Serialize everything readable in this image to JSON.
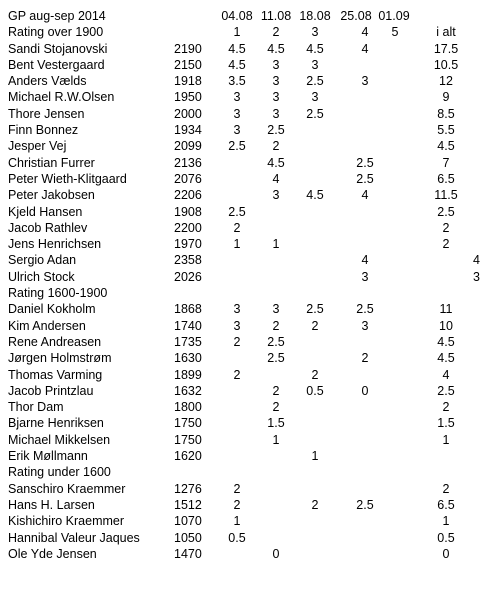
{
  "title": "GP aug-sep 2014",
  "dates": [
    "04.08",
    "11.08",
    "18.08",
    "25.08",
    "01.09"
  ],
  "round_numbers": [
    "1",
    "2",
    "3",
    "4",
    "5"
  ],
  "total_header": "i alt",
  "sections": [
    {
      "label": "Rating over 1900",
      "players": [
        {
          "name": "Sandi Stojanovski",
          "rating": "2190",
          "scores": [
            "4.5",
            "4.5",
            "4.5",
            "4",
            ""
          ],
          "total": "17.5",
          "extra": ""
        },
        {
          "name": "Bent Vestergaard",
          "rating": "2150",
          "scores": [
            "4.5",
            "3",
            "3",
            "",
            ""
          ],
          "total": "10.5",
          "extra": ""
        },
        {
          "name": "Anders Vælds",
          "rating": "1918",
          "scores": [
            "3.5",
            "3",
            "2.5",
            "3",
            ""
          ],
          "total": "12",
          "extra": ""
        },
        {
          "name": "Michael R.W.Olsen",
          "rating": "1950",
          "scores": [
            "3",
            "3",
            "3",
            "",
            ""
          ],
          "total": "9",
          "extra": ""
        },
        {
          "name": "Thore Jensen",
          "rating": "2000",
          "scores": [
            "3",
            "3",
            "2.5",
            "",
            ""
          ],
          "total": "8.5",
          "extra": ""
        },
        {
          "name": "Finn Bonnez",
          "rating": "1934",
          "scores": [
            "3",
            "2.5",
            "",
            "",
            ""
          ],
          "total": "5.5",
          "extra": ""
        },
        {
          "name": "Jesper Vej",
          "rating": "2099",
          "scores": [
            "2.5",
            "2",
            "",
            "",
            ""
          ],
          "total": "4.5",
          "extra": ""
        },
        {
          "name": "Christian Furrer",
          "rating": "2136",
          "scores": [
            "",
            "4.5",
            "",
            "2.5",
            ""
          ],
          "total": "7",
          "extra": ""
        },
        {
          "name": "Peter Wieth-Klitgaard",
          "rating": "2076",
          "scores": [
            "",
            "4",
            "",
            "2.5",
            ""
          ],
          "total": "6.5",
          "extra": ""
        },
        {
          "name": "Peter Jakobsen",
          "rating": "2206",
          "scores": [
            "",
            "3",
            "4.5",
            "4",
            ""
          ],
          "total": "11.5",
          "extra": ""
        },
        {
          "name": "Kjeld Hansen",
          "rating": "1908",
          "scores": [
            "2.5",
            "",
            "",
            "",
            ""
          ],
          "total": "2.5",
          "extra": ""
        },
        {
          "name": "Jacob Rathlev",
          "rating": "2200",
          "scores": [
            "2",
            "",
            "",
            "",
            ""
          ],
          "total": "2",
          "extra": ""
        },
        {
          "name": "Jens Henrichsen",
          "rating": "1970",
          "scores": [
            "1",
            "1",
            "",
            "",
            ""
          ],
          "total": "2",
          "extra": ""
        },
        {
          "name": "Sergio Adan",
          "rating": "2358",
          "scores": [
            "",
            "",
            "",
            "4",
            ""
          ],
          "total": "",
          "extra": "4"
        },
        {
          "name": "Ulrich Stock",
          "rating": "2026",
          "scores": [
            "",
            "",
            "",
            "3",
            ""
          ],
          "total": "",
          "extra": "3"
        }
      ]
    },
    {
      "label": "Rating 1600-1900",
      "players": [
        {
          "name": "Daniel Kokholm",
          "rating": "1868",
          "scores": [
            "3",
            "3",
            "2.5",
            "2.5",
            ""
          ],
          "total": "11",
          "extra": ""
        },
        {
          "name": "Kim Andersen",
          "rating": "1740",
          "scores": [
            "3",
            "2",
            "2",
            "3",
            ""
          ],
          "total": "10",
          "extra": ""
        },
        {
          "name": "Rene Andreasen",
          "rating": "1735",
          "scores": [
            "2",
            "2.5",
            "",
            "",
            ""
          ],
          "total": "4.5",
          "extra": ""
        },
        {
          "name": "Jørgen Holmstrøm",
          "rating": "1630",
          "scores": [
            "",
            "2.5",
            "",
            "2",
            ""
          ],
          "total": "4.5",
          "extra": ""
        },
        {
          "name": "Thomas Varming",
          "rating": "1899",
          "scores": [
            "2",
            "",
            "2",
            "",
            ""
          ],
          "total": "4",
          "extra": ""
        },
        {
          "name": "Jacob Printzlau",
          "rating": "1632",
          "scores": [
            "",
            "2",
            "0.5",
            "0",
            ""
          ],
          "total": "2.5",
          "extra": ""
        },
        {
          "name": "Thor Dam",
          "rating": "1800",
          "scores": [
            "",
            "2",
            "",
            "",
            ""
          ],
          "total": "2",
          "extra": ""
        },
        {
          "name": "Bjarne Henriksen",
          "rating": "1750",
          "scores": [
            "",
            "1.5",
            "",
            "",
            ""
          ],
          "total": "1.5",
          "extra": ""
        },
        {
          "name": "Michael Mikkelsen",
          "rating": "1750",
          "scores": [
            "",
            "1",
            "",
            "",
            ""
          ],
          "total": "1",
          "extra": ""
        },
        {
          "name": "Erik Møllmann",
          "rating": "1620",
          "scores": [
            "",
            "",
            "1",
            "",
            ""
          ],
          "total": "",
          "extra": ""
        }
      ]
    },
    {
      "label": "Rating under 1600",
      "players": [
        {
          "name": "Sanschiro Kraemmer",
          "rating": "1276",
          "scores": [
            "2",
            "",
            "",
            "",
            ""
          ],
          "total": "2",
          "extra": ""
        },
        {
          "name": "Hans H. Larsen",
          "rating": "1512",
          "scores": [
            "2",
            "",
            "2",
            "2.5",
            ""
          ],
          "total": "6.5",
          "extra": ""
        },
        {
          "name": "Kishichiro Kraemmer",
          "rating": "1070",
          "scores": [
            "1",
            "",
            "",
            "",
            ""
          ],
          "total": "1",
          "extra": ""
        },
        {
          "name": "Hannibal Valeur Jaques",
          "rating": "1050",
          "scores": [
            "0.5",
            "",
            "",
            "",
            ""
          ],
          "total": "0.5",
          "extra": ""
        },
        {
          "name": "Ole Yde Jensen",
          "rating": "1470",
          "scores": [
            "",
            "0",
            "",
            "",
            ""
          ],
          "total": "0",
          "extra": ""
        }
      ]
    }
  ]
}
